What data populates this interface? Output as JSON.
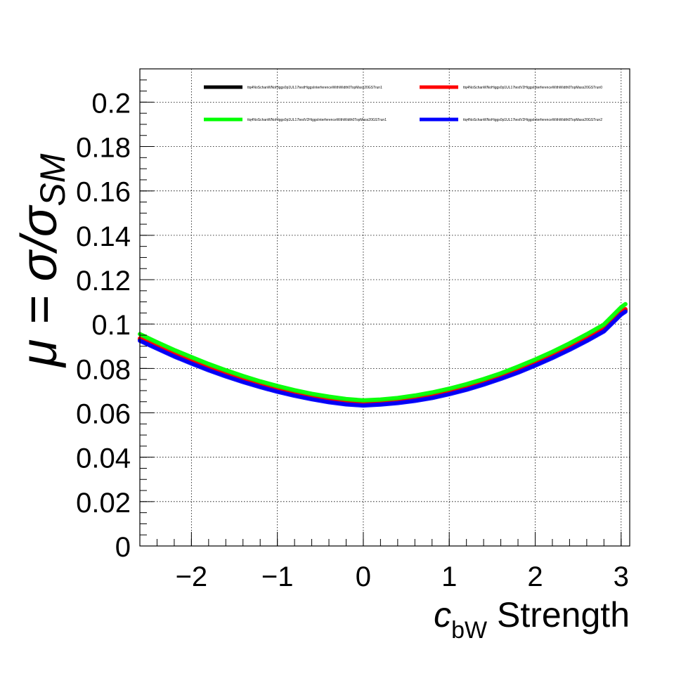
{
  "chart_data": {
    "type": "line",
    "title": "",
    "xlabel": {
      "symbol": "c",
      "subscript": "bW",
      "suffix": " Strength"
    },
    "ylabel": {
      "prefix": "μ = σ/σ",
      "subscript": "SM"
    },
    "xlim": [
      -2.6,
      3.1
    ],
    "ylim": [
      0,
      0.215
    ],
    "xticks": [
      -2,
      -1,
      0,
      1,
      2,
      3
    ],
    "xtick_labels": [
      "−2",
      "−1",
      "0",
      "1",
      "2",
      "3"
    ],
    "yticks": [
      0,
      0.02,
      0.04,
      0.06,
      0.08,
      0.1,
      0.12,
      0.14,
      0.16,
      0.18,
      0.2
    ],
    "ytick_labels": [
      "0",
      "0.02",
      "0.04",
      "0.06",
      "0.08",
      "0.1",
      "0.12",
      "0.14",
      "0.16",
      "0.18",
      "0.2"
    ],
    "grid": true,
    "legend_position": "top",
    "x": [
      -2.6,
      -2.4,
      -2.2,
      -2.0,
      -1.8,
      -1.6,
      -1.4,
      -1.2,
      -1.0,
      -0.8,
      -0.6,
      -0.4,
      -0.2,
      0.0,
      0.2,
      0.4,
      0.6,
      0.8,
      1.0,
      1.2,
      1.4,
      1.6,
      1.8,
      2.0,
      2.2,
      2.4,
      2.6,
      2.8,
      3.0,
      3.05
    ],
    "series": [
      {
        "name": "ttq4NoSchanWNoHiggs0p1UL17testHiggsInterferenceWithWidth0TopMass20GSTrun1",
        "color": "#000000",
        "values": [
          0.093,
          0.0894,
          0.0859,
          0.0827,
          0.0797,
          0.077,
          0.0744,
          0.0721,
          0.07,
          0.0682,
          0.0666,
          0.0653,
          0.0643,
          0.0638,
          0.0642,
          0.0649,
          0.0659,
          0.0672,
          0.0689,
          0.0709,
          0.0732,
          0.0758,
          0.0786,
          0.0818,
          0.0852,
          0.0889,
          0.0929,
          0.0972,
          0.1049,
          0.1062
        ]
      },
      {
        "name": "ttq4NoSchanWNoHiggs0p1UL17testV2HiggsInterferenceWithWidth0TopMass20GSTrun0",
        "color": "#ff0000",
        "values": [
          0.0935,
          0.0899,
          0.0865,
          0.0833,
          0.0803,
          0.0775,
          0.075,
          0.0727,
          0.0706,
          0.0688,
          0.0672,
          0.0659,
          0.0649,
          0.0643,
          0.0648,
          0.0655,
          0.0665,
          0.0678,
          0.0695,
          0.0715,
          0.0738,
          0.0764,
          0.0792,
          0.0824,
          0.0858,
          0.0895,
          0.0935,
          0.0978,
          0.1054,
          0.1067
        ]
      },
      {
        "name": "ttq4NoSchanWNoHiggs0p1UL17testV2HiggsInterferenceWithWidth0TopMass20GSTrun1",
        "color": "#00ff00",
        "values": [
          0.0955,
          0.0918,
          0.0883,
          0.0851,
          0.082,
          0.0792,
          0.0766,
          0.0742,
          0.0721,
          0.0702,
          0.0686,
          0.0673,
          0.0662,
          0.0656,
          0.066,
          0.0667,
          0.0678,
          0.0692,
          0.0709,
          0.0729,
          0.0752,
          0.0778,
          0.0808,
          0.084,
          0.0875,
          0.0913,
          0.0954,
          0.0998,
          0.1076,
          0.109
        ]
      },
      {
        "name": "ttq4NoSchanWNoHiggs0p1UL17testV2HiggsInterferenceWithWidth0TopMass20GSTrun2",
        "color": "#0000ff",
        "values": [
          0.0925,
          0.0889,
          0.0854,
          0.0822,
          0.0792,
          0.0764,
          0.0739,
          0.0716,
          0.0695,
          0.0677,
          0.0661,
          0.0648,
          0.0638,
          0.0633,
          0.0637,
          0.0644,
          0.0654,
          0.0667,
          0.0684,
          0.0704,
          0.0727,
          0.0753,
          0.0781,
          0.0813,
          0.0847,
          0.0884,
          0.0924,
          0.0967,
          0.1043,
          0.1056
        ]
      }
    ]
  }
}
